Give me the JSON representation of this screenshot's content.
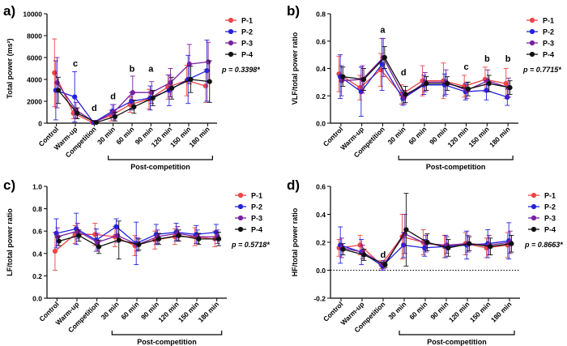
{
  "series_styles": [
    {
      "name": "P-1",
      "color": "#ee4444"
    },
    {
      "name": "P-2",
      "color": "#2222dd"
    },
    {
      "name": "P-3",
      "color": "#7a1fa2"
    },
    {
      "name": "P-4",
      "color": "#111111"
    }
  ],
  "chart_data": [
    {
      "panel_label": "a)",
      "type": "line",
      "categories": [
        "Control",
        "Warm-up",
        "Competition",
        "30 min",
        "60 min",
        "90 min",
        "120 min",
        "150 min",
        "180 min"
      ],
      "ylabel": "Total power (ms²)",
      "ylim": [
        0,
        10000
      ],
      "yticks": [
        0,
        2000,
        4000,
        6000,
        8000,
        10000
      ],
      "ytick_labels": [
        "0",
        "2000",
        "4000",
        "6000",
        "8000",
        "10000"
      ],
      "group_label": "Post-competition",
      "p_text": "p = 0.3398*",
      "annotations": [
        {
          "text": "c",
          "category": "Warm-up",
          "y": 5200
        },
        {
          "text": "d",
          "category": "Competition",
          "y": 1100
        },
        {
          "text": "d",
          "category": "30 min",
          "y": 2200
        },
        {
          "text": "b",
          "category": "60 min",
          "y": 4700
        },
        {
          "text": "a",
          "category": "90 min",
          "y": 4700
        }
      ],
      "series": [
        {
          "name": "P-1",
          "values": [
            4600,
            900,
            80,
            700,
            1700,
            2200,
            3300,
            3900,
            3400
          ],
          "errors": [
            3100,
            500,
            60,
            500,
            700,
            900,
            1100,
            1400,
            1500
          ]
        },
        {
          "name": "P-2",
          "values": [
            3000,
            2400,
            60,
            1100,
            2000,
            2300,
            3000,
            4000,
            4800
          ],
          "errors": [
            2700,
            2300,
            50,
            600,
            800,
            1100,
            1400,
            2200,
            2800
          ]
        },
        {
          "name": "P-3",
          "values": [
            3700,
            1200,
            70,
            1000,
            2800,
            2800,
            3700,
            5400,
            5600
          ],
          "errors": [
            2300,
            700,
            50,
            700,
            1500,
            1000,
            1300,
            1800,
            1800
          ]
        },
        {
          "name": "P-4",
          "values": [
            3000,
            900,
            60,
            600,
            1500,
            2300,
            3200,
            4000,
            3800
          ],
          "errors": [
            1200,
            500,
            40,
            400,
            600,
            700,
            1000,
            1200,
            1900
          ]
        }
      ]
    },
    {
      "panel_label": "b)",
      "type": "line",
      "categories": [
        "Control",
        "Warm-up",
        "Competition",
        "30 min",
        "60 min",
        "90 min",
        "120 min",
        "150 min",
        "180 min"
      ],
      "ylabel": "VLF/total power ratio",
      "ylim": [
        0,
        0.8
      ],
      "yticks": [
        0,
        0.2,
        0.4,
        0.6,
        0.8
      ],
      "ytick_labels": [
        "0.0",
        "0.2",
        "0.4",
        "0.6",
        "0.8"
      ],
      "group_label": "Post-competition",
      "p_text": "p = 0.7715*",
      "annotations": [
        {
          "text": "a",
          "category": "Competition",
          "y": 0.66
        },
        {
          "text": "d",
          "category": "30 min",
          "y": 0.35
        },
        {
          "text": "c",
          "category": "120 min",
          "y": 0.39
        },
        {
          "text": "b",
          "category": "150 min",
          "y": 0.45
        },
        {
          "text": "b",
          "category": "180 min",
          "y": 0.45
        }
      ],
      "series": [
        {
          "name": "P-1",
          "values": [
            0.36,
            0.26,
            0.39,
            0.21,
            0.31,
            0.31,
            0.27,
            0.32,
            0.29
          ],
          "errors": [
            0.13,
            0.09,
            0.12,
            0.07,
            0.11,
            0.13,
            0.08,
            0.09,
            0.11
          ]
        },
        {
          "name": "P-2",
          "values": [
            0.34,
            0.23,
            0.43,
            0.18,
            0.28,
            0.28,
            0.23,
            0.24,
            0.19
          ],
          "errors": [
            0.16,
            0.18,
            0.19,
            0.05,
            0.07,
            0.08,
            0.06,
            0.07,
            0.06
          ]
        },
        {
          "name": "P-3",
          "values": [
            0.31,
            0.32,
            0.48,
            0.19,
            0.3,
            0.3,
            0.24,
            0.31,
            0.26
          ],
          "errors": [
            0.11,
            0.1,
            0.14,
            0.05,
            0.07,
            0.09,
            0.06,
            0.08,
            0.07
          ]
        },
        {
          "name": "P-4",
          "values": [
            0.34,
            0.32,
            0.48,
            0.21,
            0.29,
            0.29,
            0.25,
            0.29,
            0.26
          ],
          "errors": [
            0.07,
            0.08,
            0.08,
            0.06,
            0.05,
            0.05,
            0.05,
            0.06,
            0.05
          ]
        }
      ]
    },
    {
      "panel_label": "c)",
      "type": "line",
      "categories": [
        "Control",
        "Warm-up",
        "Competition",
        "30 min",
        "60 min",
        "90 min",
        "120 min",
        "150 min",
        "180 min"
      ],
      "ylabel": "LF/total power ratio",
      "ylim": [
        0,
        1.0
      ],
      "yticks": [
        0,
        0.2,
        0.4,
        0.6,
        0.8,
        1.0
      ],
      "ytick_labels": [
        "0.0",
        "0.2",
        "0.4",
        "0.6",
        "0.8",
        "1.0"
      ],
      "group_label": "Post-competition",
      "p_text": "p = 0.5718*",
      "annotations": [],
      "series": [
        {
          "name": "P-1",
          "values": [
            0.42,
            0.57,
            0.57,
            0.55,
            0.47,
            0.52,
            0.55,
            0.55,
            0.53
          ],
          "errors": [
            0.17,
            0.08,
            0.1,
            0.09,
            0.09,
            0.08,
            0.07,
            0.08,
            0.07
          ]
        },
        {
          "name": "P-2",
          "values": [
            0.58,
            0.62,
            0.52,
            0.64,
            0.49,
            0.57,
            0.59,
            0.57,
            0.59
          ],
          "errors": [
            0.13,
            0.14,
            0.1,
            0.07,
            0.19,
            0.09,
            0.08,
            0.08,
            0.07
          ]
        },
        {
          "name": "P-3",
          "values": [
            0.55,
            0.6,
            0.5,
            0.56,
            0.48,
            0.55,
            0.58,
            0.55,
            0.55
          ],
          "errors": [
            0.08,
            0.07,
            0.08,
            0.06,
            0.06,
            0.06,
            0.06,
            0.06,
            0.06
          ]
        },
        {
          "name": "P-4",
          "values": [
            0.51,
            0.56,
            0.46,
            0.52,
            0.48,
            0.53,
            0.56,
            0.53,
            0.53
          ],
          "errors": [
            0.04,
            0.05,
            0.06,
            0.17,
            0.05,
            0.05,
            0.05,
            0.05,
            0.06
          ]
        }
      ]
    },
    {
      "panel_label": "d)",
      "type": "line",
      "categories": [
        "Control",
        "Warm-up",
        "Competition",
        "30 min",
        "60 min",
        "90 min",
        "120 min",
        "150 min",
        "180 min"
      ],
      "ylabel": "HF/total power ratio",
      "ylim": [
        -0.2,
        0.6
      ],
      "yticks": [
        -0.2,
        0,
        0.2,
        0.4,
        0.6
      ],
      "ytick_labels": [
        "-0.2",
        "0.0",
        "0.2",
        "0.4",
        "0.6"
      ],
      "group_label": "Post-competition",
      "p_text": "p = 0.8663*",
      "zero_line": true,
      "annotations": [
        {
          "text": "d",
          "category": "Competition",
          "y": 0.09
        }
      ],
      "series": [
        {
          "name": "P-1",
          "values": [
            0.16,
            0.18,
            0.04,
            0.24,
            0.2,
            0.17,
            0.19,
            0.16,
            0.18
          ],
          "errors": [
            0.06,
            0.07,
            0.03,
            0.16,
            0.09,
            0.08,
            0.08,
            0.07,
            0.09
          ]
        },
        {
          "name": "P-2",
          "values": [
            0.18,
            0.13,
            0.03,
            0.18,
            0.16,
            0.17,
            0.18,
            0.19,
            0.21
          ],
          "errors": [
            0.13,
            0.09,
            0.03,
            0.09,
            0.06,
            0.08,
            0.1,
            0.1,
            0.13
          ]
        },
        {
          "name": "P-3",
          "values": [
            0.16,
            0.13,
            0.04,
            0.26,
            0.19,
            0.18,
            0.19,
            0.18,
            0.2
          ],
          "errors": [
            0.07,
            0.05,
            0.03,
            0.14,
            0.06,
            0.06,
            0.06,
            0.07,
            0.08
          ]
        },
        {
          "name": "P-4",
          "values": [
            0.15,
            0.11,
            0.04,
            0.29,
            0.2,
            0.16,
            0.19,
            0.17,
            0.19
          ],
          "errors": [
            0.04,
            0.04,
            0.02,
            0.26,
            0.06,
            0.06,
            0.05,
            0.06,
            0.06
          ]
        }
      ]
    }
  ]
}
